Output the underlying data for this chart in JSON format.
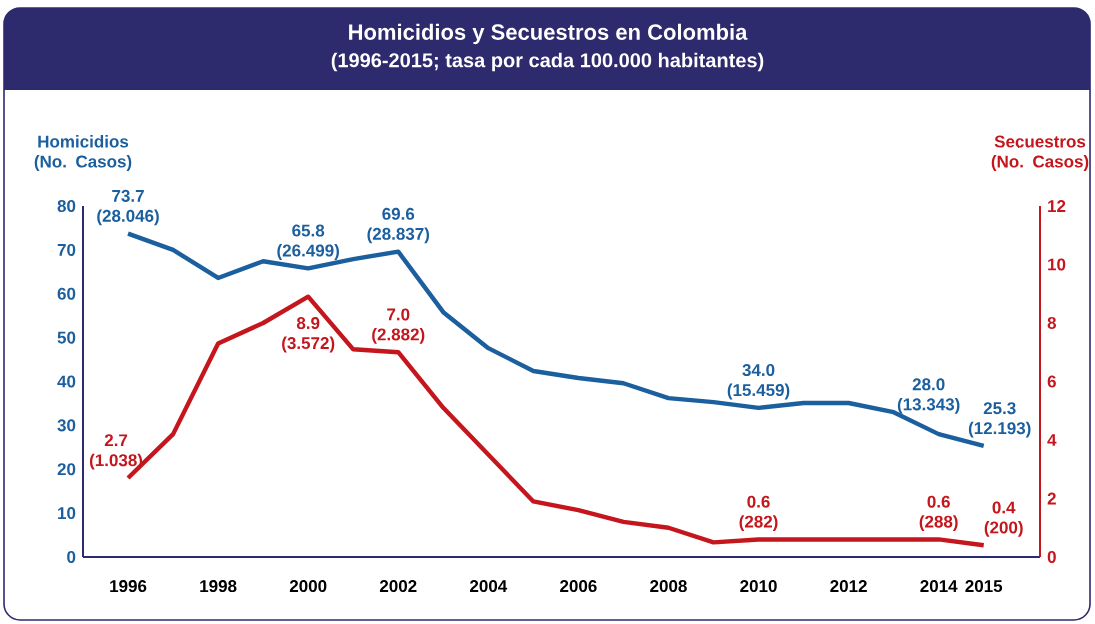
{
  "chart_data": {
    "type": "line",
    "title": "Homicidios y Secuestros en Colombia",
    "subtitle": "(1996-2015; tasa por cada 100.000 habitantes)",
    "ylabel": "Homicidios (No. Casos)",
    "y2label": "Secuestros (No. Casos)",
    "x": [
      1996,
      1997,
      1998,
      1999,
      2000,
      2001,
      2002,
      2003,
      2004,
      2005,
      2006,
      2007,
      2008,
      2009,
      2010,
      2011,
      2012,
      2013,
      2014,
      2015
    ],
    "xlim": [
      1995,
      2016.25
    ],
    "xticks": [
      1996,
      1998,
      2000,
      2002,
      2004,
      2006,
      2008,
      2010,
      2012,
      2014,
      2015
    ],
    "ylim": [
      0,
      80
    ],
    "yticks": [
      0,
      10,
      20,
      30,
      40,
      50,
      60,
      70,
      80
    ],
    "y2lim": [
      0,
      12
    ],
    "y2ticks": [
      0,
      2,
      4,
      6,
      8,
      10,
      12
    ],
    "grid": false,
    "marker": "none",
    "line_style": "solid",
    "series": [
      {
        "color": "#1b5f9e",
        "values": [
          73.7,
          70,
          63.6,
          67.4,
          65.8,
          67.9,
          69.6,
          55.8,
          47.6,
          42.4,
          40.8,
          39.6,
          36.2,
          35.3,
          34.0,
          35.1,
          35.1,
          33.0,
          28.0,
          25.3
        ],
        "value_labels": [
          "73.7 (28.046)",
          null,
          null,
          null,
          "65.8 (26.499)",
          null,
          "69.6 (28.837)",
          null,
          null,
          null,
          null,
          null,
          null,
          null,
          "34.0 (15.459)",
          null,
          null,
          null,
          "28.0 (13.343)",
          "25.3 (12.193)"
        ]
      },
      {
        "color": "#c4161c",
        "axis": "y2",
        "values": [
          2.7,
          4.2,
          7.3,
          8.0,
          8.9,
          7.1,
          7.0,
          5.1,
          3.5,
          1.9,
          1.6,
          1.2,
          1.0,
          0.5,
          0.6,
          0.6,
          0.6,
          0.6,
          0.6,
          0.4
        ],
        "value_labels": [
          "2.7 (1.038)",
          null,
          null,
          null,
          "8.9 (3.572)",
          null,
          "7.0 (2.882)",
          null,
          null,
          null,
          null,
          null,
          null,
          null,
          "0.6 (282)",
          null,
          null,
          null,
          "0.6 (288)",
          "0.4 (200)"
        ]
      }
    ]
  }
}
